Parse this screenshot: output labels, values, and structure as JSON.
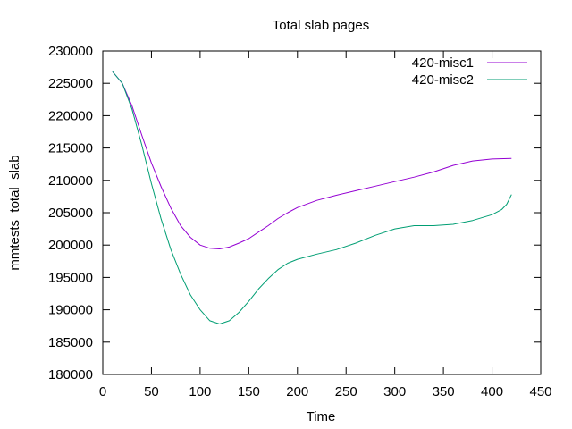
{
  "chart_data": {
    "type": "line",
    "title": "Total slab pages",
    "xlabel": "Time",
    "ylabel": "mmtests_total_slab",
    "xlim": [
      0,
      450
    ],
    "ylim": [
      180000,
      230000
    ],
    "xticks": [
      0,
      50,
      100,
      150,
      200,
      250,
      300,
      350,
      400,
      450
    ],
    "yticks": [
      180000,
      185000,
      190000,
      195000,
      200000,
      205000,
      210000,
      215000,
      220000,
      225000,
      230000
    ],
    "legend_position": "top-right",
    "grid": false,
    "series": [
      {
        "name": "420-misc1",
        "color": "#9400d3",
        "x": [
          10,
          20,
          30,
          40,
          50,
          60,
          70,
          80,
          90,
          100,
          110,
          120,
          130,
          140,
          150,
          160,
          170,
          180,
          190,
          200,
          220,
          240,
          260,
          280,
          300,
          320,
          340,
          360,
          380,
          400,
          420
        ],
        "y": [
          226800,
          225000,
          221500,
          217000,
          212700,
          209000,
          205700,
          203000,
          201200,
          200000,
          199500,
          199400,
          199700,
          200300,
          201000,
          202000,
          203000,
          204100,
          205000,
          205800,
          206900,
          207700,
          208400,
          209100,
          209800,
          210500,
          211300,
          212300,
          213000,
          213300,
          213400
        ]
      },
      {
        "name": "420-misc2",
        "color": "#009e73",
        "x": [
          10,
          20,
          30,
          40,
          50,
          60,
          70,
          80,
          90,
          100,
          110,
          120,
          130,
          140,
          150,
          160,
          170,
          180,
          190,
          200,
          220,
          240,
          260,
          280,
          300,
          320,
          340,
          360,
          380,
          400,
          410,
          415,
          420
        ],
        "y": [
          226800,
          225000,
          221000,
          215500,
          209500,
          204000,
          199300,
          195500,
          192300,
          190000,
          188300,
          187800,
          188300,
          189600,
          191300,
          193200,
          194800,
          196200,
          197200,
          197800,
          198600,
          199300,
          200300,
          201500,
          202500,
          203000,
          203000,
          203200,
          203800,
          204700,
          205500,
          206300,
          207800
        ]
      }
    ]
  }
}
